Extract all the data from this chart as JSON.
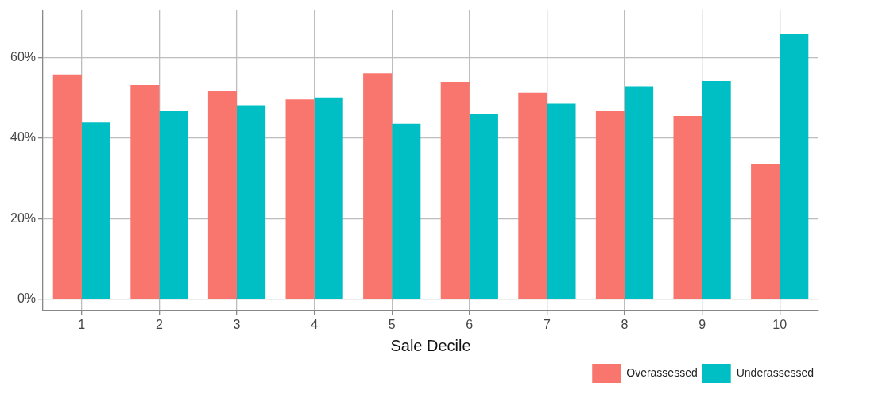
{
  "chart_data": {
    "type": "bar",
    "xlabel": "Sale Decile",
    "categories": [
      "1",
      "2",
      "3",
      "4",
      "5",
      "6",
      "7",
      "8",
      "9",
      "10"
    ],
    "series": [
      {
        "name": "Overassessed",
        "color": "#f8766d",
        "values": [
          55.8,
          53.2,
          51.7,
          49.6,
          56.1,
          54.0,
          51.3,
          46.7,
          45.5,
          33.7
        ]
      },
      {
        "name": "Underassessed",
        "color": "#00bfc4",
        "values": [
          43.9,
          46.7,
          48.2,
          50.1,
          43.6,
          46.1,
          48.6,
          52.9,
          54.2,
          65.8
        ]
      }
    ],
    "ylim": [
      -2.7,
      71.8
    ],
    "yticks": [
      {
        "value": 0,
        "label": "0%"
      },
      {
        "value": 20,
        "label": "20%"
      },
      {
        "value": 40,
        "label": "40%"
      },
      {
        "value": 60,
        "label": "60%"
      }
    ],
    "grid": true,
    "legend": "bottom right"
  }
}
